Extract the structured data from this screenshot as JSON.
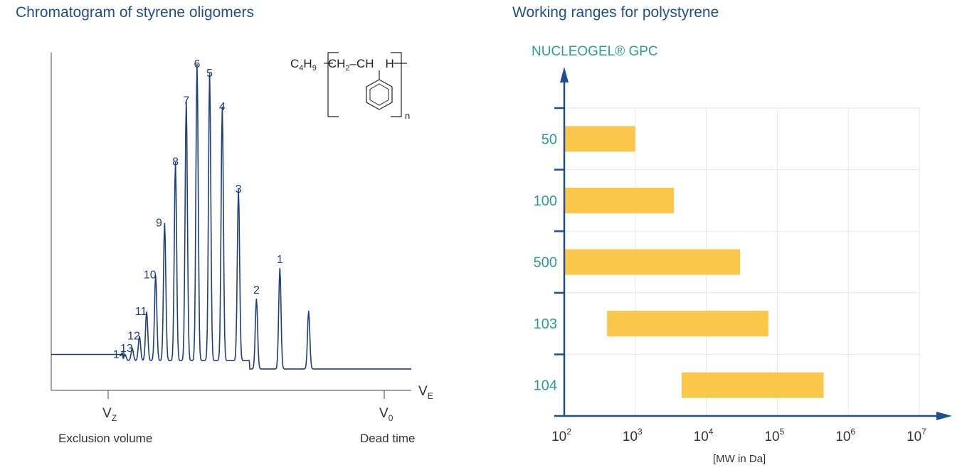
{
  "chart_data": [
    {
      "type": "line",
      "title": "Chromatogram of styrene oligomers",
      "xlabel": "V_E",
      "x_markers": [
        {
          "symbol": "V",
          "sub": "Z",
          "caption": "Exclusion volume"
        },
        {
          "symbol": "V",
          "sub": "0",
          "caption": "Dead time"
        }
      ],
      "formula": {
        "parts": [
          "C",
          "4",
          "H",
          "9",
          "CH",
          "2",
          "–",
          "CH",
          "H"
        ],
        "repeat": "n"
      },
      "peak_labels": [
        "14",
        "13",
        "12",
        "11",
        "10",
        "9",
        "8",
        "7",
        "6",
        "5",
        "4",
        "3",
        "2",
        "1"
      ],
      "peaks": [
        {
          "label": "14",
          "x": 0.205,
          "h": 0.02
        },
        {
          "label": "13",
          "x": 0.225,
          "h": 0.04
        },
        {
          "label": "12",
          "x": 0.245,
          "h": 0.08
        },
        {
          "label": "11",
          "x": 0.265,
          "h": 0.16
        },
        {
          "label": "10",
          "x": 0.29,
          "h": 0.28
        },
        {
          "label": "9",
          "x": 0.315,
          "h": 0.45
        },
        {
          "label": "8",
          "x": 0.345,
          "h": 0.65
        },
        {
          "label": "7",
          "x": 0.375,
          "h": 0.85
        },
        {
          "label": "6",
          "x": 0.405,
          "h": 0.97
        },
        {
          "label": "5",
          "x": 0.44,
          "h": 0.94
        },
        {
          "label": "4",
          "x": 0.475,
          "h": 0.83
        },
        {
          "label": "3",
          "x": 0.52,
          "h": 0.56
        },
        {
          "label": "2",
          "x": 0.57,
          "h": 0.23
        },
        {
          "label": "1",
          "x": 0.635,
          "h": 0.33
        },
        {
          "label": "",
          "x": 0.715,
          "h": 0.19
        }
      ],
      "baseline": 0.05,
      "grid": false
    },
    {
      "type": "bar",
      "orientation": "horizontal",
      "title": "Working ranges for polystyrene",
      "ylabel": "NUCLEOGEL® GPC",
      "xlabel": "[MW in Da]",
      "x_scale": "log",
      "xlim_exp": [
        2,
        7
      ],
      "x_tick_labels": [
        "10",
        "10",
        "10",
        "10",
        "10",
        "10"
      ],
      "x_tick_exponents": [
        "2",
        "3",
        "4",
        "5",
        "6",
        "7"
      ],
      "categories": [
        "50",
        "100",
        "500",
        "103",
        "104"
      ],
      "ranges_mw": [
        [
          100,
          1000
        ],
        [
          100,
          3500
        ],
        [
          100,
          30000
        ],
        [
          400,
          75000
        ],
        [
          4500,
          450000
        ]
      ],
      "bar_color": "#fbc74a",
      "label_color": "#2a9d96",
      "axis_color": "#1f4f8f",
      "grid": true
    }
  ]
}
